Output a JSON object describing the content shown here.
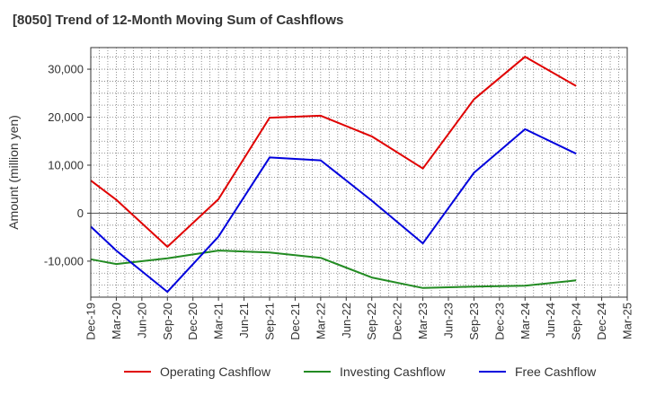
{
  "chart_data": {
    "type": "line",
    "title": "[8050]  Trend of 12-Month Moving Sum of Cashflows",
    "ylabel": "Amount (million yen)",
    "xlabel": "",
    "categories": [
      "Dec-19",
      "Mar-20",
      "Jun-20",
      "Sep-20",
      "Dec-20",
      "Mar-21",
      "Jun-21",
      "Sep-21",
      "Dec-21",
      "Mar-22",
      "Jun-22",
      "Sep-22",
      "Dec-22",
      "Mar-23",
      "Jun-23",
      "Sep-23",
      "Dec-23",
      "Mar-24",
      "Jun-24",
      "Sep-24",
      "Dec-24",
      "Mar-25"
    ],
    "ylim": [
      -17500,
      34500
    ],
    "yticks": [
      -10000,
      0,
      10000,
      20000,
      30000
    ],
    "ytick_labels": [
      "-10,000",
      "0",
      "10,000",
      "20,000",
      "30,000"
    ],
    "grid": true,
    "legend_position": "bottom",
    "series": [
      {
        "name": "Operating Cashflow",
        "color": "#e00000",
        "values": [
          6800,
          2800,
          null,
          -7000,
          null,
          2900,
          null,
          19900,
          null,
          20300,
          null,
          16000,
          null,
          9300,
          null,
          23700,
          null,
          32600,
          null,
          26500,
          null,
          null
        ]
      },
      {
        "name": "Investing Cashflow",
        "color": "#228b22",
        "values": [
          -9600,
          -10600,
          null,
          -9400,
          null,
          -7800,
          null,
          -8200,
          null,
          -9300,
          null,
          -13400,
          null,
          -15600,
          null,
          -15300,
          null,
          -15100,
          null,
          -14000,
          null,
          null
        ]
      },
      {
        "name": "Free Cashflow",
        "color": "#0000dd",
        "values": [
          -2800,
          -7800,
          null,
          -16400,
          null,
          -4900,
          null,
          11600,
          null,
          11000,
          null,
          2600,
          null,
          -6300,
          null,
          8400,
          null,
          17500,
          null,
          12400,
          null,
          null
        ]
      }
    ]
  }
}
